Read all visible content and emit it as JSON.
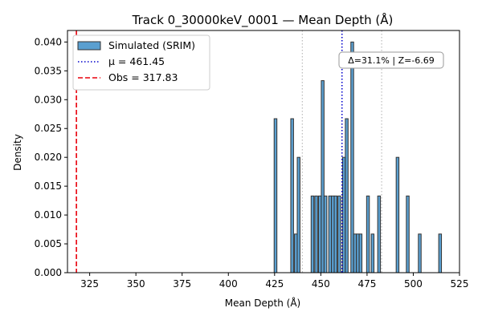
{
  "chart_data": {
    "type": "histogram",
    "title": "Track 0_30000keV_0001 — Mean Depth (Å)",
    "xlabel": "Mean Depth (Å)",
    "ylabel": "Density",
    "xlim": [
      313,
      525
    ],
    "ylim": [
      0,
      0.042
    ],
    "xticks": [
      325,
      350,
      375,
      400,
      425,
      450,
      475,
      500,
      525
    ],
    "yticks": [
      0.0,
      0.005,
      0.01,
      0.015,
      0.02,
      0.025,
      0.03,
      0.035,
      0.04
    ],
    "xtick_labels": [
      "325",
      "350",
      "375",
      "400",
      "425",
      "450",
      "475",
      "500",
      "525"
    ],
    "ytick_labels": [
      "0.000",
      "0.005",
      "0.010",
      "0.015",
      "0.020",
      "0.025",
      "0.030",
      "0.035",
      "0.040"
    ],
    "bin_width": 1.5,
    "bars": [
      {
        "x": 425.5,
        "density": 0.0267
      },
      {
        "x": 434.5,
        "density": 0.0267
      },
      {
        "x": 436.5,
        "density": 0.0067
      },
      {
        "x": 438.0,
        "density": 0.02
      },
      {
        "x": 445.5,
        "density": 0.0133
      },
      {
        "x": 447.5,
        "density": 0.0133
      },
      {
        "x": 449.5,
        "density": 0.0133
      },
      {
        "x": 451.0,
        "density": 0.0333
      },
      {
        "x": 452.5,
        "density": 0.0133
      },
      {
        "x": 455.0,
        "density": 0.0133
      },
      {
        "x": 456.5,
        "density": 0.0133
      },
      {
        "x": 458.0,
        "density": 0.0133
      },
      {
        "x": 460.0,
        "density": 0.0133
      },
      {
        "x": 462.5,
        "density": 0.02
      },
      {
        "x": 464.0,
        "density": 0.0267
      },
      {
        "x": 467.0,
        "density": 0.04
      },
      {
        "x": 468.5,
        "density": 0.0067
      },
      {
        "x": 470.0,
        "density": 0.0067
      },
      {
        "x": 471.5,
        "density": 0.0067
      },
      {
        "x": 475.5,
        "density": 0.0133
      },
      {
        "x": 478.0,
        "density": 0.0067
      },
      {
        "x": 481.5,
        "density": 0.0133
      },
      {
        "x": 491.5,
        "density": 0.02
      },
      {
        "x": 497.0,
        "density": 0.0133
      },
      {
        "x": 503.5,
        "density": 0.0067
      },
      {
        "x": 514.5,
        "density": 0.0067
      }
    ],
    "lines": {
      "mean": {
        "x": 461.45,
        "color": "#0000cc",
        "style": "dotted"
      },
      "obs": {
        "x": 317.83,
        "color": "#e8000b",
        "style": "dashed"
      },
      "sigma_low": {
        "x": 440.0,
        "color": "#bbbbbb",
        "style": "dotted"
      },
      "sigma_high": {
        "x": 482.9,
        "color": "#bbbbbb",
        "style": "dotted"
      }
    },
    "legend": {
      "position": "top-left",
      "entries": [
        {
          "label": "Simulated (SRIM)",
          "kind": "patch",
          "color": "#5a9fd0",
          "edge": "#333333"
        },
        {
          "label": "μ = 461.45",
          "kind": "line",
          "color": "#0000cc",
          "style": "dotted"
        },
        {
          "label": "Obs = 317.83",
          "kind": "line",
          "color": "#e8000b",
          "style": "dashed"
        }
      ]
    },
    "annotation": "Δ=31.1% | Z=-6.69",
    "bar_color": "#5a9fd0",
    "bar_edge_color": "#333333",
    "grid": false
  }
}
